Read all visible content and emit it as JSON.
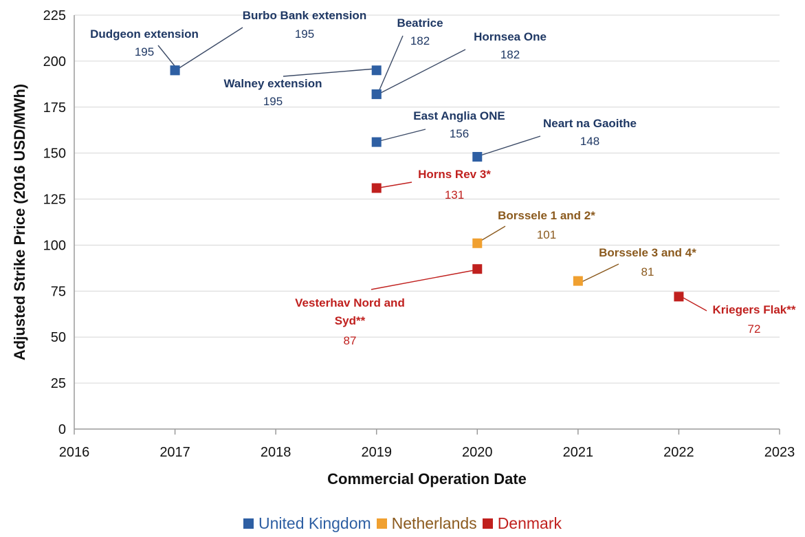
{
  "chart_data": {
    "type": "scatter",
    "title": "",
    "xlabel": "Commercial Operation Date",
    "ylabel": "Adjusted Strike Price (2016 USD/MWh)",
    "xlim": [
      2016,
      2023
    ],
    "ylim": [
      0,
      225
    ],
    "x_ticks": [
      "2016",
      "2017",
      "2018",
      "2019",
      "2020",
      "2021",
      "2022",
      "2023"
    ],
    "y_ticks": [
      "0",
      "25",
      "50",
      "75",
      "100",
      "125",
      "150",
      "175",
      "200",
      "225"
    ],
    "grid": "horizontal",
    "legend_position": "bottom",
    "series": [
      {
        "name": "United Kingdom",
        "color": "#2E5FA3",
        "label_color": "#1F3864",
        "points": [
          {
            "label": "Dudgeon extension",
            "value_label": "195",
            "x": 2017,
            "y": 195
          },
          {
            "label": "Burbo Bank extension",
            "value_label": "195",
            "x": 2017,
            "y": 195
          },
          {
            "label": "Walney extension",
            "value_label": "195",
            "x": 2019,
            "y": 195
          },
          {
            "label": "Beatrice",
            "value_label": "182",
            "x": 2019,
            "y": 182
          },
          {
            "label": "Hornsea One",
            "value_label": "182",
            "x": 2019,
            "y": 182
          },
          {
            "label": "East Anglia ONE",
            "value_label": "156",
            "x": 2019,
            "y": 156
          },
          {
            "label": "Neart na Gaoithe",
            "value_label": "148",
            "x": 2020,
            "y": 148
          }
        ]
      },
      {
        "name": "Netherlands",
        "color": "#F0A030",
        "label_color": "#8B5A1E",
        "points": [
          {
            "label": "Borssele 1 and 2*",
            "value_label": "101",
            "x": 2020,
            "y": 101
          },
          {
            "label": "Borssele 3 and 4*",
            "value_label": "81",
            "x": 2021,
            "y": 80.5
          }
        ]
      },
      {
        "name": "Denmark",
        "color": "#C0201E",
        "label_color": "#C0201E",
        "points": [
          {
            "label": "Horns Rev 3*",
            "value_label": "131",
            "x": 2019,
            "y": 131
          },
          {
            "label": "Vesterhav Nord and Syd**",
            "value_label": "87",
            "x": 2020,
            "y": 87
          },
          {
            "label": "Kriegers Flak**",
            "value_label": "72",
            "x": 2022,
            "y": 72
          }
        ]
      }
    ]
  }
}
